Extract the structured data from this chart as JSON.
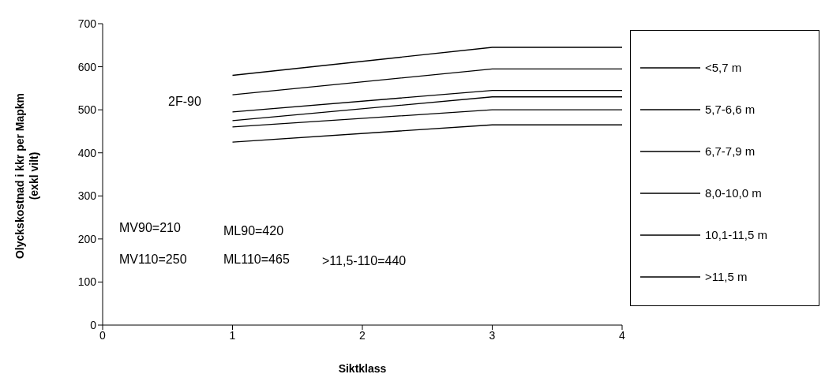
{
  "chart_data": {
    "type": "line",
    "xlabel": "Siktklass",
    "ylabel": "Olyckskostnad i kkr per Mapkm\n(exkl vilt)",
    "x": [
      1,
      3,
      4
    ],
    "series": [
      {
        "name": "<5,7 m",
        "color": "#000000",
        "values": [
          580,
          645,
          645
        ]
      },
      {
        "name": "5,7-6,6 m",
        "color": "#000000",
        "values": [
          535,
          595,
          595
        ]
      },
      {
        "name": "6,7-7,9 m",
        "color": "#000000",
        "values": [
          495,
          545,
          545
        ]
      },
      {
        "name": "8,0-10,0 m",
        "color": "#000000",
        "values": [
          475,
          530,
          530
        ]
      },
      {
        "name": "10,1-11,5 m",
        "color": "#000000",
        "values": [
          460,
          500,
          500
        ]
      },
      {
        "name": ">11,5 m",
        "color": "#000000",
        "values": [
          425,
          465,
          465
        ]
      }
    ],
    "xlim": [
      0,
      4
    ],
    "xticks": [
      0,
      1,
      2,
      3,
      4
    ],
    "ylim": [
      0,
      700
    ],
    "yticks": [
      0,
      100,
      200,
      300,
      400,
      500,
      600,
      700
    ],
    "grid": false,
    "legend": "right",
    "marker": "none",
    "line_style": "solid",
    "annotations": [
      "2F-90",
      "MV90=210",
      "ML90=420",
      "MV110=250",
      "ML110=465",
      ">11,5-110=440"
    ]
  }
}
